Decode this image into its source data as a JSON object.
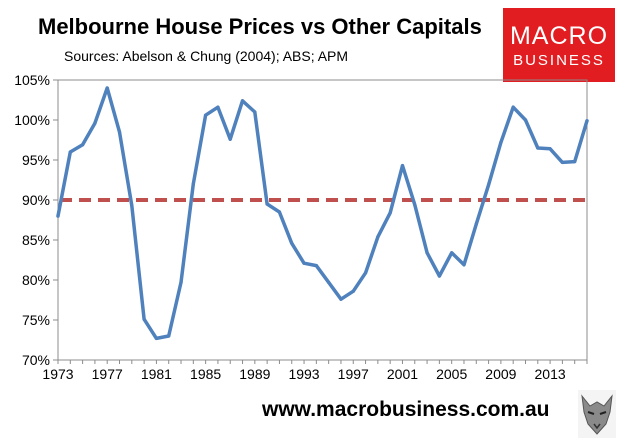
{
  "title": "Melbourne House Prices vs Other Capitals",
  "subtitle": "Sources: Abelson & Chung (2004); ABS; APM",
  "logo": {
    "line1": "MACRO",
    "line2": "BUSINESS"
  },
  "footer": {
    "url": "www.macrobusiness.com.au"
  },
  "colors": {
    "line": "#4f81bd",
    "reference": "#c0504d",
    "logo_bg": "#e21d22"
  },
  "chart_data": {
    "type": "line",
    "title": "Melbourne House Prices vs Other Capitals",
    "xlabel": "",
    "ylabel": "",
    "xlim": [
      1973,
      2016
    ],
    "ylim": [
      70,
      105
    ],
    "x_ticks": [
      "1973",
      "1977",
      "1981",
      "1985",
      "1989",
      "1993",
      "1997",
      "2001",
      "2005",
      "2009",
      "2013"
    ],
    "y_ticks": [
      "70%",
      "75%",
      "80%",
      "85%",
      "90%",
      "95%",
      "100%",
      "105%"
    ],
    "grid": false,
    "series": [
      {
        "x": [
          1973,
          1974,
          1975,
          1976,
          1977,
          1978,
          1979,
          1980,
          1981,
          1982,
          1983,
          1984,
          1985,
          1986,
          1987,
          1988,
          1989,
          1990,
          1991,
          1992,
          1993,
          1994,
          1995,
          1996,
          1997,
          1998,
          1999,
          2000,
          2001,
          2002,
          2003,
          2004,
          2005,
          2006,
          2007,
          2008,
          2009,
          2010,
          2011,
          2012,
          2013,
          2014,
          2015,
          2016
        ],
        "values": [
          88,
          96,
          96.9,
          99.6,
          104,
          98.5,
          89.3,
          75.1,
          72.7,
          73,
          79.7,
          92,
          100.6,
          101.6,
          97.6,
          102.4,
          101,
          89.5,
          88.5,
          84.6,
          82.1,
          81.8,
          79.7,
          77.6,
          78.6,
          80.9,
          85.4,
          88.4,
          94.3,
          89.4,
          83.4,
          80.5,
          83.4,
          81.9,
          87,
          91.9,
          97.2,
          101.6,
          100,
          96.5,
          96.4,
          94.7,
          94.8,
          99.9
        ]
      }
    ],
    "reference_line": {
      "value": 90,
      "style": "dashed"
    }
  }
}
